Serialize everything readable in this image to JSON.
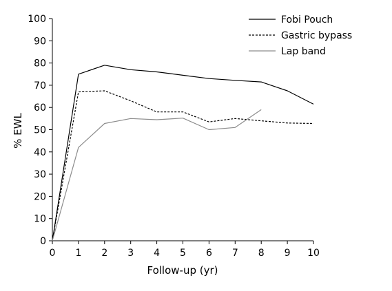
{
  "chart_data": {
    "type": "line",
    "title": "",
    "xlabel": "Follow-up (yr)",
    "ylabel": "% EWL",
    "xlim": [
      0,
      10
    ],
    "ylim": [
      0,
      100
    ],
    "xticks": [
      0,
      1,
      2,
      3,
      4,
      5,
      6,
      7,
      8,
      9,
      10
    ],
    "yticks": [
      0,
      10,
      20,
      30,
      40,
      50,
      60,
      70,
      80,
      90,
      100
    ],
    "grid": false,
    "legend_position": "top-right",
    "series": [
      {
        "name": "Fobi Pouch",
        "color": "#000000",
        "style": "solid",
        "x": [
          0,
          1,
          2,
          3,
          4,
          5,
          6,
          7,
          8,
          9,
          10
        ],
        "y": [
          0,
          75,
          79,
          77,
          76,
          74.5,
          73,
          72.2,
          71.5,
          67.5,
          61.5
        ]
      },
      {
        "name": "Gastric bypass",
        "color": "#000000",
        "style": "dashed",
        "x": [
          0,
          1,
          2,
          3,
          4,
          5,
          6,
          7,
          8,
          9,
          10
        ],
        "y": [
          0,
          67,
          67.5,
          63,
          58,
          58,
          53.5,
          55,
          54,
          53,
          52.8
        ]
      },
      {
        "name": "Lap band",
        "color": "#8c8c8c",
        "style": "solid",
        "x": [
          0,
          1,
          2,
          3,
          4,
          5,
          6,
          7,
          8
        ],
        "y": [
          0,
          42,
          52.8,
          55,
          54.5,
          55.2,
          50,
          51,
          59
        ]
      }
    ]
  }
}
